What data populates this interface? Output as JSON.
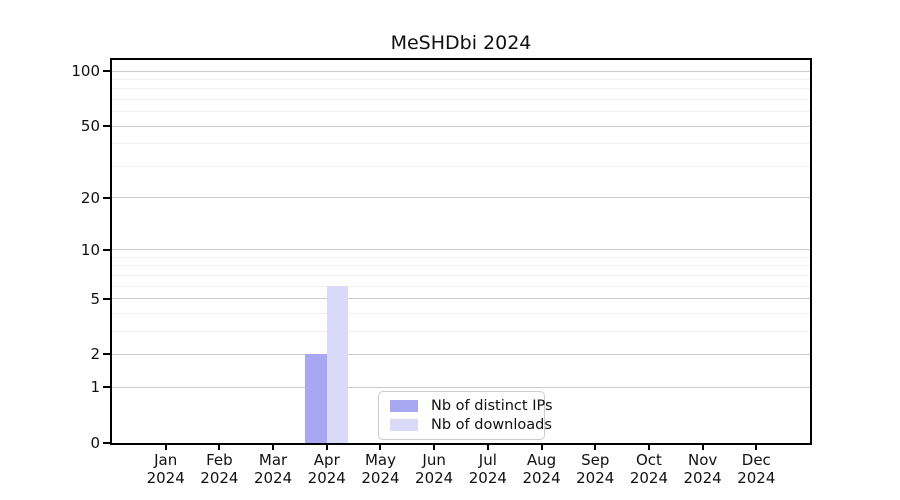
{
  "chart_data": {
    "type": "bar",
    "title": "MeSHDbi 2024",
    "categories": [
      "Jan",
      "Feb",
      "Mar",
      "Apr",
      "May",
      "Jun",
      "Jul",
      "Aug",
      "Sep",
      "Oct",
      "Nov",
      "Dec"
    ],
    "x_year": "2024",
    "series": [
      {
        "name": "Nb of distinct IPs",
        "color": "#a8a8f2",
        "values": [
          0,
          0,
          0,
          2,
          0,
          0,
          0,
          0,
          0,
          0,
          0,
          0
        ]
      },
      {
        "name": "Nb of downloads",
        "color": "#dadaf8",
        "values": [
          0,
          0,
          0,
          6,
          0,
          0,
          0,
          0,
          0,
          0,
          0,
          0
        ]
      }
    ],
    "y_axis": {
      "scale": "log1p",
      "ticks_major": [
        0,
        1,
        2,
        5,
        10,
        20,
        50,
        100
      ],
      "ticks_minor": [
        3,
        4,
        6,
        7,
        8,
        9,
        30,
        40,
        60,
        70,
        80,
        90
      ],
      "ymax": 115
    },
    "grid": true,
    "legend_position": "lower center",
    "colors": {
      "grid_major": "#cccccc",
      "grid_minor": "#f0f0f0",
      "spine": "#000000",
      "background": "#ffffff"
    }
  }
}
